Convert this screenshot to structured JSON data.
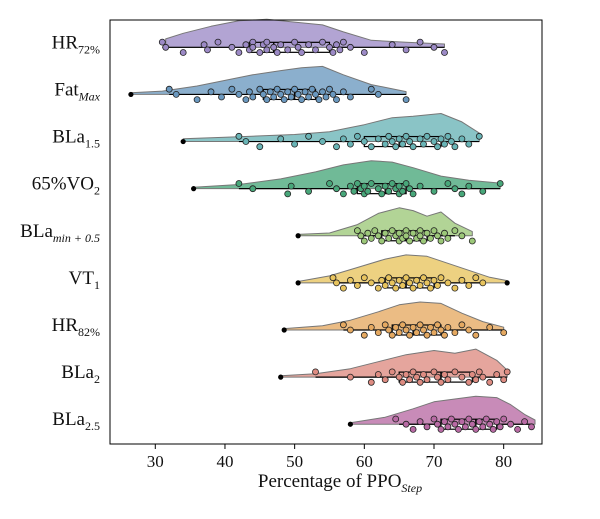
{
  "chart_data": {
    "type": "raincloud",
    "title": "",
    "xlabel": {
      "main": "Percentage of PPO",
      "sub": "Step"
    },
    "ylabel": "",
    "xlim": [
      23.5,
      85.5
    ],
    "x_ticks": [
      "30",
      "40",
      "50",
      "60",
      "70",
      "80"
    ],
    "tick_values": [
      30,
      40,
      50,
      60,
      70,
      80
    ],
    "grid": false,
    "series": [
      {
        "label": {
          "main": "HR",
          "sub": "72%"
        },
        "color": "#9C8AC6",
        "box": {
          "whisker_low": 31,
          "q1": 43.5,
          "median": 47,
          "q3": 55,
          "whisker_high": 71.5
        },
        "outliers": [],
        "points": [
          31,
          31.5,
          34,
          37,
          37.5,
          39,
          41,
          42,
          43,
          43.5,
          44,
          44,
          45,
          45.5,
          46,
          46,
          47,
          47.5,
          48,
          49,
          50,
          50.5,
          51,
          52,
          53,
          54,
          55,
          55.5,
          56,
          56.5,
          57,
          58,
          60,
          64,
          66,
          68,
          70,
          71.5
        ],
        "density": [
          [
            31.5,
            0.3
          ],
          [
            34,
            0.5
          ],
          [
            38,
            0.75
          ],
          [
            42,
            0.95
          ],
          [
            46,
            1.0
          ],
          [
            50,
            0.9
          ],
          [
            54,
            0.8
          ],
          [
            57,
            0.55
          ],
          [
            61,
            0.25
          ],
          [
            66,
            0.18
          ],
          [
            71.5,
            0.12
          ]
        ]
      },
      {
        "label": {
          "main": "Fat",
          "sub": "Max"
        },
        "color": "#6A98BF",
        "box": {
          "whisker_low": 32,
          "q1": 45.5,
          "median": 50,
          "q3": 53,
          "whisker_high": 66
        },
        "outliers": [
          26.5
        ],
        "points": [
          32,
          33,
          36,
          38,
          39.5,
          41,
          42,
          43,
          43.5,
          44,
          45,
          45.5,
          46,
          46.5,
          47,
          47.5,
          48,
          48.5,
          49,
          49.5,
          50,
          50.5,
          51,
          51.5,
          52,
          52.5,
          53,
          53.5,
          54,
          54.5,
          55,
          55.5,
          56,
          57,
          58,
          61,
          62,
          66
        ],
        "density": [
          [
            26.5,
            0.06
          ],
          [
            31,
            0.12
          ],
          [
            36,
            0.3
          ],
          [
            40,
            0.5
          ],
          [
            44,
            0.7
          ],
          [
            48,
            0.85
          ],
          [
            51,
            0.95
          ],
          [
            54,
            1.0
          ],
          [
            57,
            0.7
          ],
          [
            61,
            0.35
          ],
          [
            66,
            0.1
          ]
        ]
      },
      {
        "label": {
          "main": "BLa",
          "sub": "1.5"
        },
        "color": "#69B4B6",
        "box": {
          "whisker_low": 42,
          "q1": 60,
          "median": 65,
          "q3": 71,
          "whisker_high": 76.5
        },
        "outliers": [
          34
        ],
        "points": [
          42,
          43,
          45,
          48,
          50,
          52,
          54,
          56,
          57,
          58,
          59,
          60,
          61,
          62,
          63,
          63.5,
          64,
          64.5,
          65,
          65.5,
          66,
          66.5,
          67,
          68,
          68.5,
          69,
          70,
          70.5,
          71,
          71.5,
          72,
          72.5,
          73,
          74,
          75,
          76.5
        ],
        "density": [
          [
            34,
            0.1
          ],
          [
            40,
            0.15
          ],
          [
            45,
            0.2
          ],
          [
            50,
            0.25
          ],
          [
            55,
            0.35
          ],
          [
            60,
            0.6
          ],
          [
            64,
            0.85
          ],
          [
            67,
            0.9
          ],
          [
            71,
            1.0
          ],
          [
            74,
            0.7
          ],
          [
            76.5,
            0.3
          ]
        ]
      },
      {
        "label": {
          "main": "65%VO",
          "sub": "2"
        },
        "color": "#48A77A",
        "box": {
          "whisker_low": 42,
          "q1": 59,
          "median": 63,
          "q3": 66,
          "whisker_high": 79.5
        },
        "outliers": [
          35.5
        ],
        "points": [
          42,
          44,
          49,
          49.5,
          52,
          55,
          56,
          57,
          58,
          58.5,
          59,
          59.5,
          60,
          60,
          60.5,
          61,
          62,
          62.5,
          63,
          63.5,
          64,
          64.5,
          65,
          65,
          65.5,
          66,
          66.5,
          67,
          68,
          70,
          72,
          73,
          74,
          75,
          77,
          79.5
        ],
        "density": [
          [
            35.5,
            0.05
          ],
          [
            42,
            0.15
          ],
          [
            48,
            0.35
          ],
          [
            53,
            0.6
          ],
          [
            57,
            0.85
          ],
          [
            61,
            1.0
          ],
          [
            64,
            0.95
          ],
          [
            67,
            0.75
          ],
          [
            71,
            0.45
          ],
          [
            75,
            0.3
          ],
          [
            79.5,
            0.2
          ]
        ]
      },
      {
        "label": {
          "main": "BLa",
          "sub": "min + 0.5"
        },
        "color": "#9CC879",
        "box": {
          "whisker_low": 59.5,
          "q1": 62.5,
          "median": 66,
          "q3": 69,
          "whisker_high": 73
        },
        "outliers": [
          50.5
        ],
        "points": [
          59,
          59.5,
          60,
          60.5,
          61,
          61.5,
          62,
          62.5,
          63,
          63.5,
          64,
          64.5,
          65,
          65,
          65.5,
          66,
          66,
          66.5,
          67,
          67.5,
          68,
          68,
          68.5,
          69,
          69.5,
          70,
          70.5,
          71,
          71.5,
          72,
          73,
          74,
          75.5
        ],
        "density": [
          [
            50.5,
            0.05
          ],
          [
            55,
            0.1
          ],
          [
            59,
            0.4
          ],
          [
            62,
            0.8
          ],
          [
            65,
            1.0
          ],
          [
            67,
            0.9
          ],
          [
            69,
            0.7
          ],
          [
            71,
            0.85
          ],
          [
            73,
            0.45
          ],
          [
            75.5,
            0.15
          ]
        ]
      },
      {
        "label": {
          "main": "VT",
          "sub": "1"
        },
        "color": "#E8C45E",
        "box": {
          "whisker_low": 56,
          "q1": 63,
          "median": 66,
          "q3": 70,
          "whisker_high": 77
        },
        "outliers": [
          50.5,
          80.5
        ],
        "points": [
          55.5,
          56,
          57,
          58,
          59,
          60,
          61,
          62,
          62.5,
          63,
          63.5,
          64,
          64.5,
          65,
          65.5,
          66,
          66.5,
          67,
          67.5,
          68,
          68.5,
          69,
          69.5,
          70,
          70.5,
          71,
          72,
          73,
          74,
          75,
          76,
          77
        ],
        "density": [
          [
            50.5,
            0.05
          ],
          [
            55,
            0.25
          ],
          [
            59,
            0.55
          ],
          [
            63,
            0.85
          ],
          [
            66,
            1.0
          ],
          [
            69,
            0.95
          ],
          [
            72,
            0.7
          ],
          [
            75,
            0.45
          ],
          [
            78,
            0.2
          ],
          [
            80.5,
            0.08
          ]
        ]
      },
      {
        "label": {
          "main": "HR",
          "sub": "82%"
        },
        "color": "#E5A961",
        "box": {
          "whisker_low": 57,
          "q1": 64,
          "median": 67,
          "q3": 71,
          "whisker_high": 80
        },
        "outliers": [
          48.5
        ],
        "points": [
          57,
          58,
          60,
          61,
          62,
          63,
          63.5,
          64,
          64.5,
          65,
          65.5,
          66,
          66.5,
          67,
          67.5,
          68,
          68.5,
          69,
          69.5,
          70,
          70.5,
          71,
          71.5,
          72,
          73,
          74,
          75,
          76,
          78,
          80
        ],
        "density": [
          [
            48.5,
            0.05
          ],
          [
            54,
            0.15
          ],
          [
            58,
            0.35
          ],
          [
            62,
            0.65
          ],
          [
            65,
            0.9
          ],
          [
            68,
            1.0
          ],
          [
            71,
            0.95
          ],
          [
            74,
            0.6
          ],
          [
            77,
            0.3
          ],
          [
            80,
            0.1
          ]
        ]
      },
      {
        "label": {
          "main": "BLa",
          "sub": "2"
        },
        "color": "#DE8C82",
        "box": {
          "whisker_low": 53,
          "q1": 65,
          "median": 71,
          "q3": 75.5,
          "whisker_high": 80.5
        },
        "outliers": [
          48
        ],
        "points": [
          53,
          58,
          61,
          62,
          63,
          64,
          65,
          65.5,
          66,
          66.5,
          67,
          67.5,
          68,
          68.5,
          69,
          70,
          70.5,
          71,
          71.5,
          72,
          73,
          74,
          75,
          75.5,
          76,
          76.5,
          77,
          78,
          79,
          80,
          80.5
        ],
        "density": [
          [
            48,
            0.05
          ],
          [
            53,
            0.12
          ],
          [
            58,
            0.3
          ],
          [
            62,
            0.55
          ],
          [
            66,
            0.8
          ],
          [
            70,
            0.95
          ],
          [
            73,
            0.85
          ],
          [
            76,
            1.0
          ],
          [
            79,
            0.6
          ],
          [
            80.5,
            0.25
          ]
        ]
      },
      {
        "label": {
          "main": "BLa",
          "sub": "2.5"
        },
        "color": "#B86AA4",
        "box": {
          "whisker_low": 65,
          "q1": 71,
          "median": 76,
          "q3": 79,
          "whisker_high": 84
        },
        "outliers": [
          58
        ],
        "points": [
          64.5,
          66,
          67,
          68,
          69,
          70,
          70.5,
          71,
          71.5,
          72,
          72.5,
          73,
          73.5,
          74,
          74.5,
          75,
          75.5,
          76,
          76.5,
          77,
          77.5,
          78,
          78.5,
          79,
          79.5,
          80,
          81,
          82,
          83,
          84
        ],
        "density": [
          [
            58,
            0.05
          ],
          [
            63,
            0.25
          ],
          [
            67,
            0.55
          ],
          [
            70,
            0.8
          ],
          [
            73,
            0.9
          ],
          [
            76,
            1.0
          ],
          [
            79,
            0.95
          ],
          [
            81,
            0.7
          ],
          [
            83,
            0.35
          ],
          [
            84.5,
            0.15
          ]
        ]
      }
    ]
  }
}
